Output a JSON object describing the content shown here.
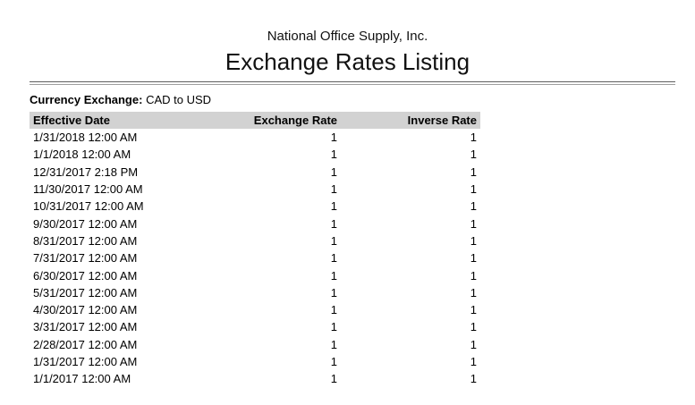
{
  "report": {
    "company": "National Office Supply, Inc.",
    "title": "Exchange Rates Listing",
    "filter_label": "Currency Exchange:",
    "filter_value": "CAD to USD"
  },
  "table": {
    "columns": [
      "Effective Date",
      "Exchange Rate",
      "Inverse Rate"
    ],
    "rows": [
      [
        "1/31/2018 12:00 AM",
        "1",
        "1"
      ],
      [
        "1/1/2018 12:00 AM",
        "1",
        "1"
      ],
      [
        "12/31/2017 2:18 PM",
        "1",
        "1"
      ],
      [
        "11/30/2017 12:00 AM",
        "1",
        "1"
      ],
      [
        "10/31/2017 12:00 AM",
        "1",
        "1"
      ],
      [
        "9/30/2017 12:00 AM",
        "1",
        "1"
      ],
      [
        "8/31/2017 12:00 AM",
        "1",
        "1"
      ],
      [
        "7/31/2017 12:00 AM",
        "1",
        "1"
      ],
      [
        "6/30/2017 12:00 AM",
        "1",
        "1"
      ],
      [
        "5/31/2017 12:00 AM",
        "1",
        "1"
      ],
      [
        "4/30/2017 12:00 AM",
        "1",
        "1"
      ],
      [
        "3/31/2017 12:00 AM",
        "1",
        "1"
      ],
      [
        "2/28/2017 12:00 AM",
        "1",
        "1"
      ],
      [
        "1/31/2017 12:00 AM",
        "1",
        "1"
      ],
      [
        "1/1/2017 12:00 AM",
        "1",
        "1"
      ]
    ]
  },
  "colors": {
    "header_band": "#d2d2d2",
    "rule_dark": "#5f5f5f",
    "rule_light": "#9e9e9e",
    "text": "#000000",
    "background": "#ffffff"
  }
}
